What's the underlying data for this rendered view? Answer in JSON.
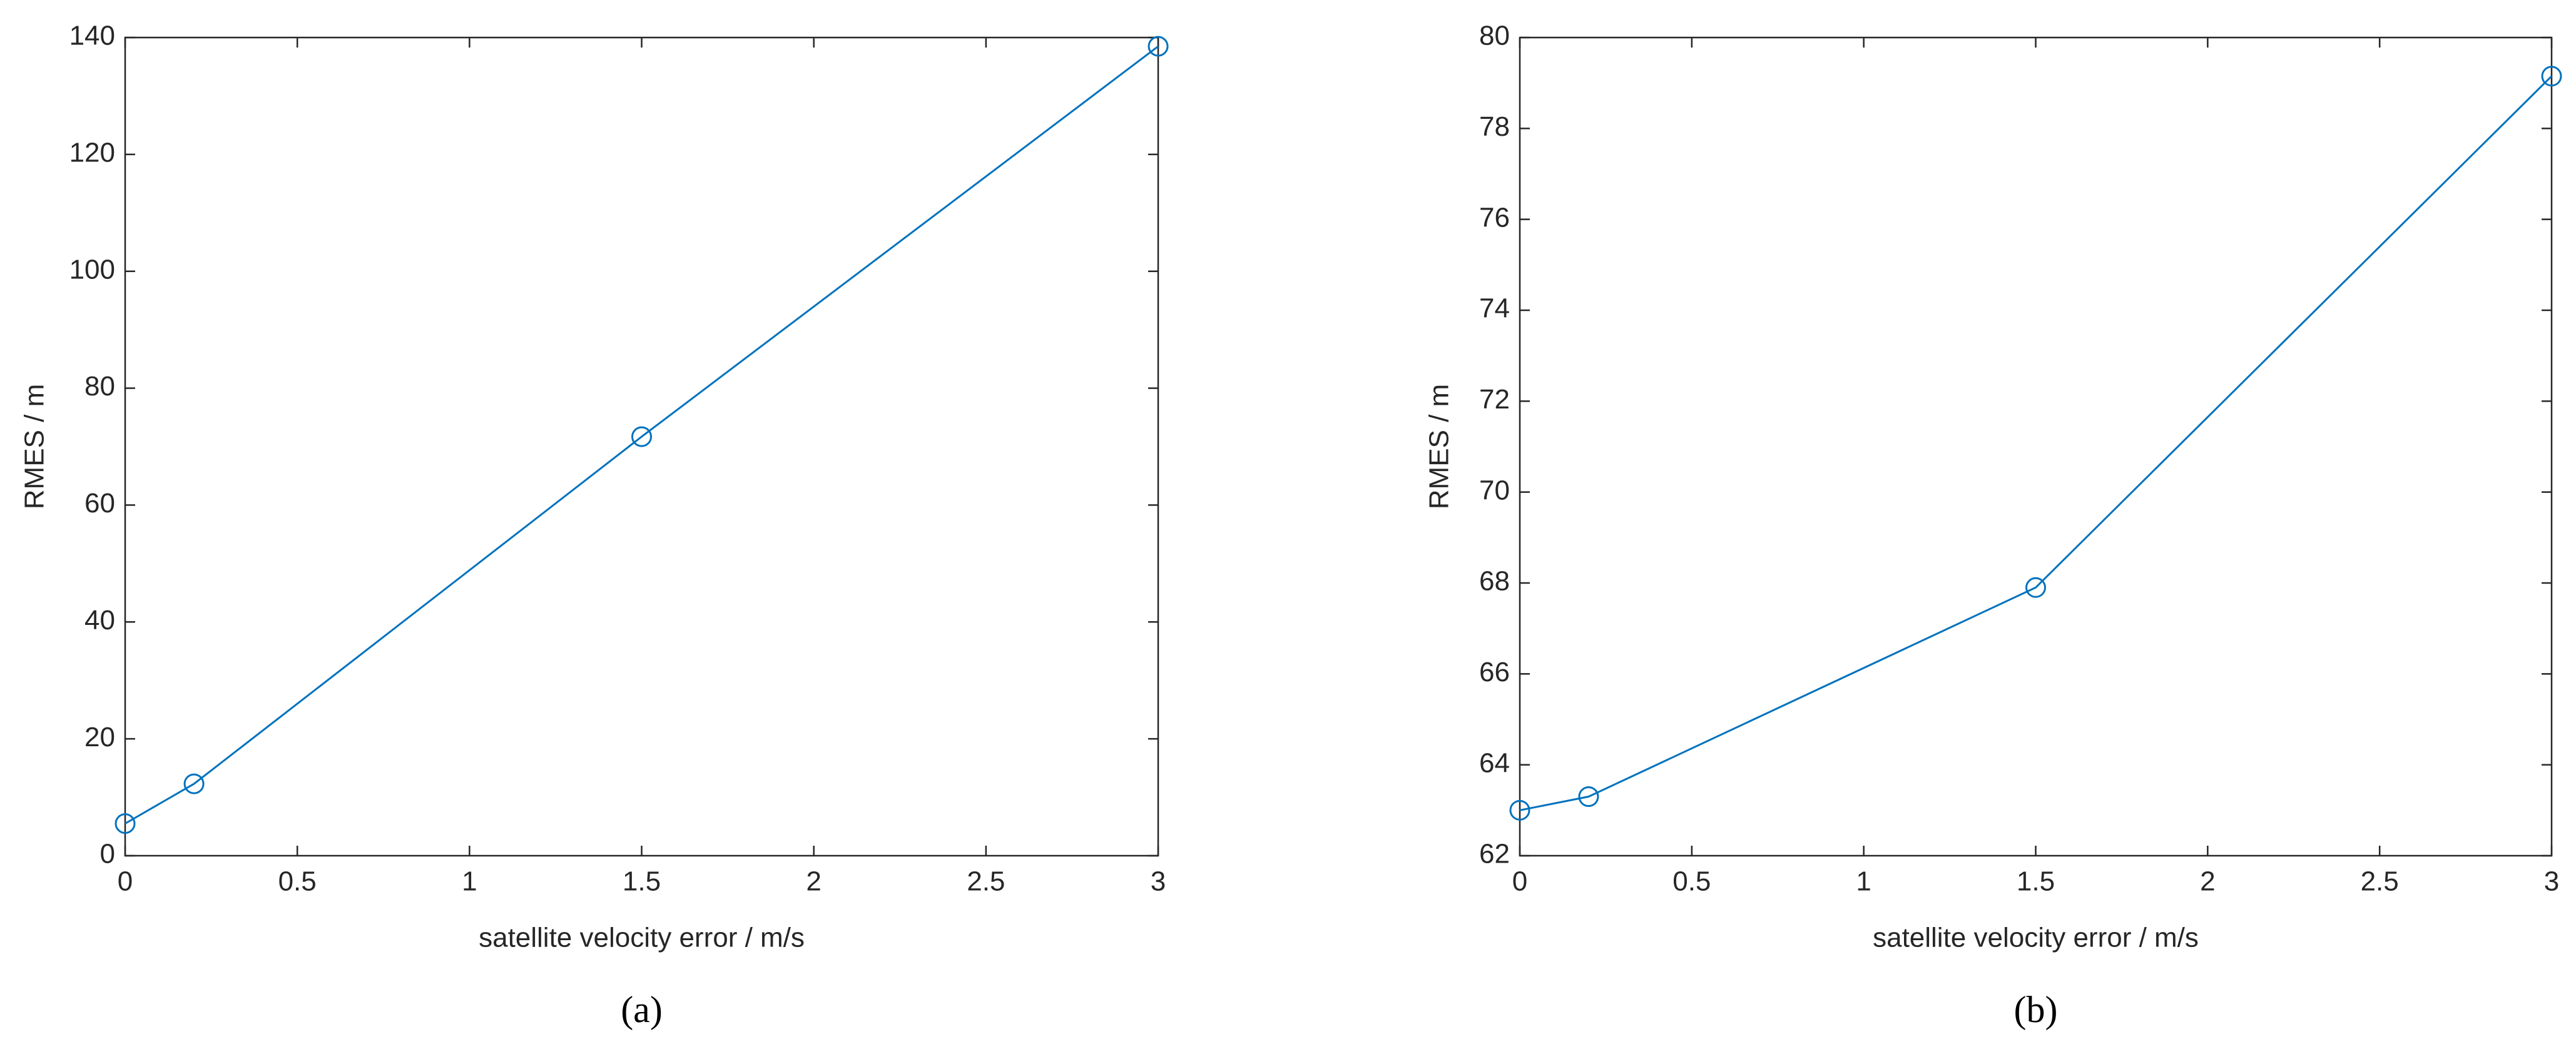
{
  "chart_data": [
    {
      "type": "line",
      "caption": "(a)",
      "xlabel": "satellite velocity error / m/s",
      "ylabel": "RMES / m",
      "x": [
        0,
        0.2,
        1.5,
        3
      ],
      "values": [
        5.5,
        12.3,
        71.7,
        138.5
      ],
      "color": "#0072bd",
      "marker": "o",
      "xlim": [
        0,
        3
      ],
      "ylim": [
        0,
        140
      ],
      "xticks": [
        0,
        0.5,
        1,
        1.5,
        2,
        2.5,
        3
      ],
      "yticks": [
        0,
        20,
        40,
        60,
        80,
        100,
        120,
        140
      ]
    },
    {
      "type": "line",
      "caption": "(b)",
      "xlabel": "satellite velocity error / m/s",
      "ylabel": "RMES / m",
      "x": [
        0,
        0.2,
        1.5,
        3
      ],
      "values": [
        63.0,
        63.3,
        67.9,
        79.15
      ],
      "color": "#0072bd",
      "marker": "o",
      "xlim": [
        0,
        3
      ],
      "ylim": [
        62,
        80
      ],
      "xticks": [
        0,
        0.5,
        1,
        1.5,
        2,
        2.5,
        3
      ],
      "yticks": [
        62,
        64,
        66,
        68,
        70,
        72,
        74,
        76,
        78,
        80
      ]
    }
  ]
}
